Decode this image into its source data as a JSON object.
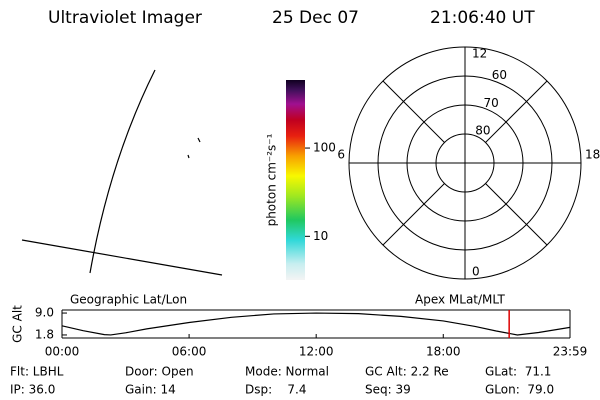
{
  "header": {
    "title": "Ultraviolet Imager",
    "date": "25 Dec 07",
    "time": "21:06:40 UT"
  },
  "colorbar": {
    "label": "photon cm⁻²s⁻¹",
    "log": true,
    "lim": [
      3.2,
      590
    ],
    "ticks": [
      10,
      100
    ]
  },
  "polar": {
    "lat_range": [
      50,
      90
    ],
    "lat_ticks": [
      80,
      70,
      60
    ],
    "mlt_ticks": [
      12,
      6,
      18,
      0
    ]
  },
  "chart_data": {
    "type": "line",
    "ylabel": "GC Alt",
    "left_label": "Geographic Lat/Lon",
    "right_label": "Apex MLat/MLT",
    "x": [
      0,
      1,
      2,
      2.3,
      3,
      4,
      6,
      8,
      10,
      12,
      14,
      16,
      18,
      19.5,
      20.5,
      21.5,
      22.5,
      23.983
    ],
    "values": [
      4.8,
      3.2,
      1.9,
      1.8,
      2.5,
      3.8,
      5.9,
      7.6,
      8.7,
      9.0,
      8.8,
      7.9,
      6.4,
      4.6,
      3.1,
      1.8,
      2.6,
      4.3
    ],
    "color": "#000000",
    "marker_x": 21.111,
    "marker_color": "#dd0000",
    "xlim": [
      0,
      23.983
    ],
    "xticks": [
      {
        "value": 0,
        "label": "00:00"
      },
      {
        "value": 6,
        "label": "06:00"
      },
      {
        "value": 12,
        "label": "12:00"
      },
      {
        "value": 18,
        "label": "18:00"
      },
      {
        "value": 23.983,
        "label": "23:59"
      }
    ],
    "ylim": [
      0.8,
      10
    ],
    "yticks": [
      {
        "value": 9,
        "label": "9.0"
      },
      1.8
    ]
  },
  "status": [
    [
      "Flt: LBHL",
      "Door: Open",
      "Mode: Normal",
      "GC Alt: 2.2 Re",
      "GLat:  71.1"
    ],
    [
      "IP: 36.0",
      "Gain: 14",
      "Dsp:    7.4",
      "Seq: 39",
      "GLon:  79.0"
    ]
  ]
}
